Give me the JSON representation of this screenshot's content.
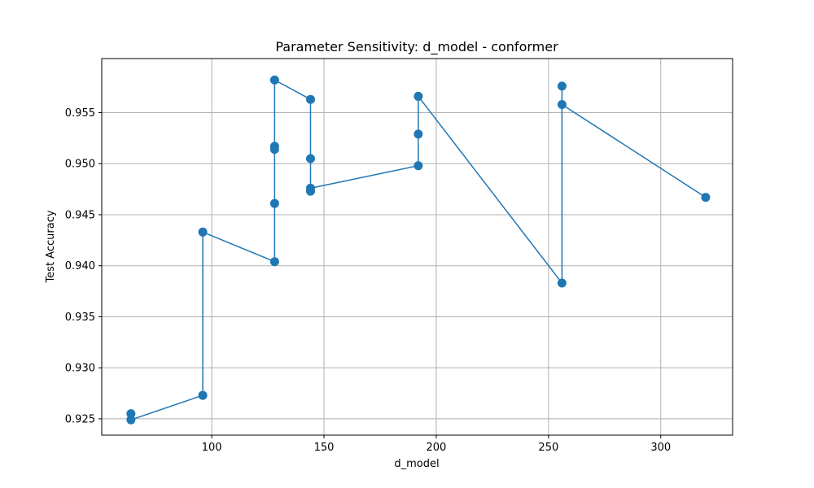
{
  "chart_data": {
    "type": "line",
    "title": "Parameter Sensitivity: d_model - conformer",
    "xlabel": "d_model",
    "ylabel": "Test Accuracy",
    "xlim": [
      51,
      332
    ],
    "ylim": [
      0.9234,
      0.9603
    ],
    "xticks": [
      100,
      150,
      200,
      250,
      300
    ],
    "yticks": [
      0.925,
      0.93,
      0.935,
      0.94,
      0.945,
      0.95,
      0.955
    ],
    "ytick_labels": [
      "0.925",
      "0.930",
      "0.935",
      "0.940",
      "0.945",
      "0.950",
      "0.955"
    ],
    "grid": true,
    "line_color": "#1f77b4",
    "series": [
      {
        "x": [
          64,
          64,
          96,
          96,
          128,
          128,
          128,
          128,
          128,
          144,
          144,
          144,
          144,
          192,
          192,
          192,
          256,
          256,
          256,
          320
        ],
        "values": [
          0.9255,
          0.9249,
          0.9273,
          0.9433,
          0.9404,
          0.9461,
          0.9514,
          0.9517,
          0.9582,
          0.9563,
          0.9505,
          0.9473,
          0.9476,
          0.9498,
          0.9529,
          0.9566,
          0.9383,
          0.9576,
          0.9558,
          0.9467
        ]
      }
    ]
  }
}
